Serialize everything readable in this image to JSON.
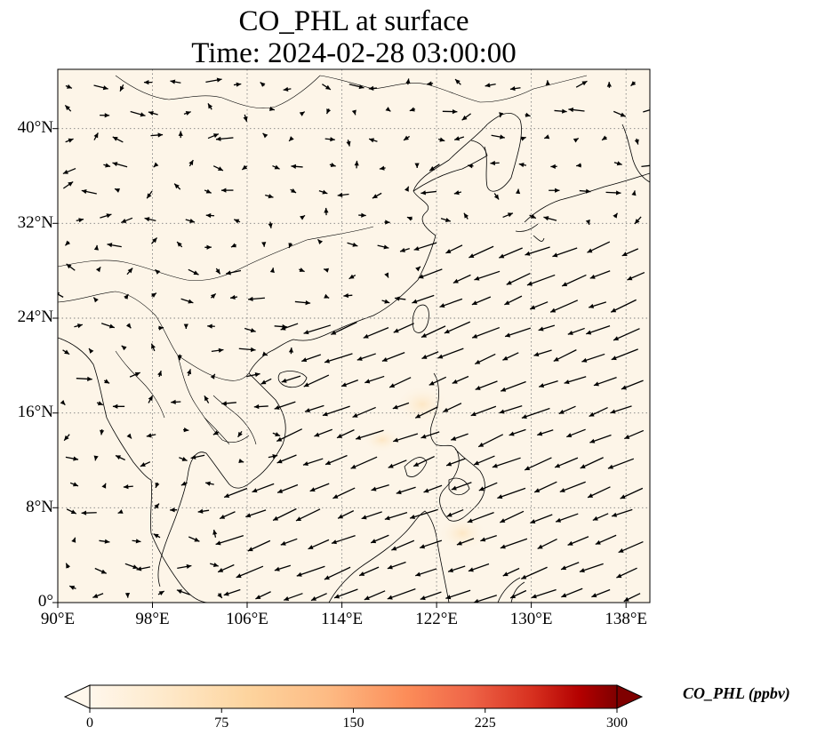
{
  "title": {
    "line1": "CO_PHL at surface",
    "line2": "Time: 2024-02-28 03:00:00"
  },
  "map": {
    "projection": "PlateCarree",
    "lon_range": [
      90,
      140
    ],
    "lat_range": [
      0,
      45
    ],
    "background_color": "#fdf5e8",
    "gridlines": "dotted",
    "lat_ticks": [
      {
        "value": 40,
        "label": "40°N"
      },
      {
        "value": 32,
        "label": "32°N"
      },
      {
        "value": 24,
        "label": "24°N"
      },
      {
        "value": 16,
        "label": "16°N"
      },
      {
        "value": 8,
        "label": "8°N"
      },
      {
        "value": 0,
        "label": "0°"
      }
    ],
    "lon_ticks": [
      {
        "value": 90,
        "label": "90°E"
      },
      {
        "value": 98,
        "label": "98°E"
      },
      {
        "value": 106,
        "label": "106°E"
      },
      {
        "value": 114,
        "label": "114°E"
      },
      {
        "value": 122,
        "label": "122°E"
      },
      {
        "value": 130,
        "label": "130°E"
      },
      {
        "value": 138,
        "label": "138°E"
      }
    ],
    "wind_field": "wind vectors on a regular grid; northeasterly flow over the South China Sea, weak and variable over land"
  },
  "colorbar": {
    "label": "CO_PHL (ppbv)",
    "colormap": "OrRd",
    "range": [
      0,
      300
    ],
    "extend": "both",
    "ticks": [
      "0",
      "75",
      "150",
      "225",
      "300"
    ]
  }
}
